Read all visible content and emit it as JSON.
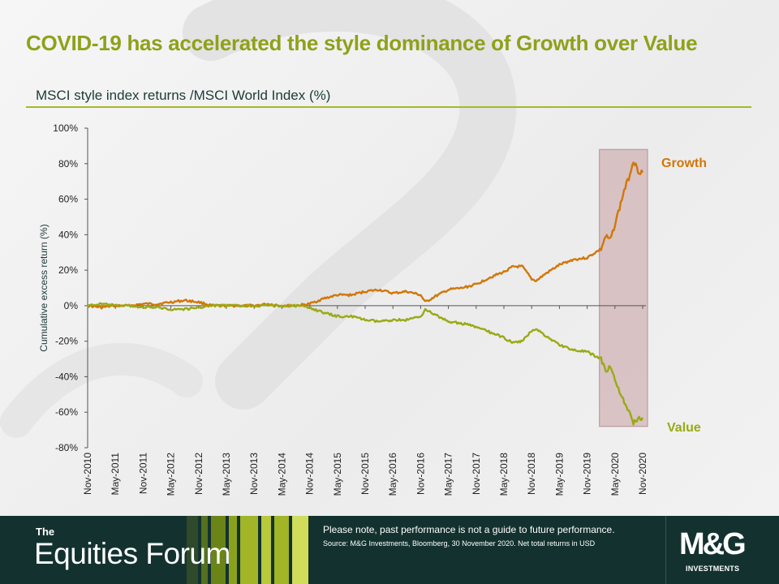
{
  "slide": {
    "title": "COVID-19 has accelerated the style dominance of Growth over Value",
    "subtitle": "MSCI style index returns /MSCI World Index (%)"
  },
  "footer": {
    "brand_the": "The",
    "brand_name": "Equities Forum",
    "disclaimer": "Please note, past performance  is not a guide to future performance.",
    "source": "Source: M&G Investments, Bloomberg, 30 November 2020. Net total returns in USD",
    "logo_text": "M&G",
    "logo_sub": "INVESTMENTS"
  },
  "colors": {
    "title": "#8fa11a",
    "growth": "#d17709",
    "value": "#99aa14",
    "highlight": "#c9a5a8",
    "footer_bg": "#13322f"
  },
  "chart_data": {
    "type": "line",
    "ylabel": "Cumulative excess return (%)",
    "ylim": [
      -80,
      100
    ],
    "y_ticks": [
      "100%",
      "80%",
      "60%",
      "40%",
      "20%",
      "0%",
      "-20%",
      "-40%",
      "-60%",
      "-80%"
    ],
    "y_tick_values": [
      100,
      80,
      60,
      40,
      20,
      0,
      -20,
      -40,
      -60,
      -80
    ],
    "x_ticks": [
      "Nov-2010",
      "May-2011",
      "Nov-2011",
      "May-2012",
      "Nov-2012",
      "May-2013",
      "Nov-2013",
      "May-2014",
      "Nov-2014",
      "May-2015",
      "Nov-2015",
      "May-2016",
      "Nov-2016",
      "May-2017",
      "Nov-2017",
      "May-2018",
      "Nov-2018",
      "May-2019",
      "Nov-2019",
      "May-2020",
      "Nov-2020"
    ],
    "highlight_period": {
      "from": "Feb-2020",
      "to": "Nov-2020",
      "y_range": [
        -68,
        88
      ]
    },
    "series": [
      {
        "name": "Growth",
        "color": "#d17709",
        "points": [
          [
            "Nov-2010",
            0
          ],
          [
            "Feb-2011",
            -1
          ],
          [
            "May-2011",
            0
          ],
          [
            "Aug-2011",
            0
          ],
          [
            "Nov-2011",
            1
          ],
          [
            "Feb-2012",
            1
          ],
          [
            "May-2012",
            2
          ],
          [
            "Aug-2012",
            3
          ],
          [
            "Nov-2012",
            2
          ],
          [
            "Feb-2013",
            0
          ],
          [
            "May-2013",
            0
          ],
          [
            "Aug-2013",
            0
          ],
          [
            "Nov-2013",
            0
          ],
          [
            "Feb-2014",
            1
          ],
          [
            "May-2014",
            0
          ],
          [
            "Aug-2014",
            0
          ],
          [
            "Nov-2014",
            1
          ],
          [
            "Feb-2015",
            4
          ],
          [
            "May-2015",
            6
          ],
          [
            "Aug-2015",
            6
          ],
          [
            "Nov-2015",
            8
          ],
          [
            "Feb-2016",
            9
          ],
          [
            "May-2016",
            7
          ],
          [
            "Aug-2016",
            8
          ],
          [
            "Nov-2016",
            6
          ],
          [
            "Dec-2016",
            2
          ],
          [
            "Feb-2017",
            5
          ],
          [
            "May-2017",
            9
          ],
          [
            "Aug-2017",
            10
          ],
          [
            "Nov-2017",
            12
          ],
          [
            "Feb-2018",
            16
          ],
          [
            "May-2018",
            19
          ],
          [
            "Jul-2018",
            22
          ],
          [
            "Sep-2018",
            22
          ],
          [
            "Nov-2018",
            15
          ],
          [
            "Dec-2018",
            14
          ],
          [
            "Feb-2019",
            18
          ],
          [
            "May-2019",
            23
          ],
          [
            "Aug-2019",
            26
          ],
          [
            "Nov-2019",
            27
          ],
          [
            "Feb-2020",
            32
          ],
          [
            "Mar-2020",
            39
          ],
          [
            "Apr-2020",
            37
          ],
          [
            "May-2020",
            46
          ],
          [
            "Jun-2020",
            55
          ],
          [
            "Jul-2020",
            65
          ],
          [
            "Aug-2020",
            72
          ],
          [
            "Sep-2020",
            82
          ],
          [
            "Oct-2020",
            76
          ],
          [
            "Nov-2020",
            75
          ]
        ]
      },
      {
        "name": "Value",
        "color": "#99aa14",
        "points": [
          [
            "Nov-2010",
            0
          ],
          [
            "Feb-2011",
            1
          ],
          [
            "May-2011",
            0
          ],
          [
            "Aug-2011",
            0
          ],
          [
            "Nov-2011",
            -1
          ],
          [
            "Feb-2012",
            -1
          ],
          [
            "May-2012",
            -2
          ],
          [
            "Aug-2012",
            -2
          ],
          [
            "Nov-2012",
            -1
          ],
          [
            "Feb-2013",
            0
          ],
          [
            "May-2013",
            0
          ],
          [
            "Aug-2013",
            0
          ],
          [
            "Nov-2013",
            0
          ],
          [
            "Feb-2014",
            0
          ],
          [
            "May-2014",
            0
          ],
          [
            "Aug-2014",
            0
          ],
          [
            "Nov-2014",
            -1
          ],
          [
            "Feb-2015",
            -4
          ],
          [
            "May-2015",
            -6
          ],
          [
            "Aug-2015",
            -6
          ],
          [
            "Nov-2015",
            -8
          ],
          [
            "Feb-2016",
            -9
          ],
          [
            "May-2016",
            -8
          ],
          [
            "Aug-2016",
            -8
          ],
          [
            "Nov-2016",
            -6
          ],
          [
            "Dec-2016",
            -2
          ],
          [
            "Feb-2017",
            -5
          ],
          [
            "May-2017",
            -9
          ],
          [
            "Aug-2017",
            -10
          ],
          [
            "Nov-2017",
            -12
          ],
          [
            "Feb-2018",
            -15
          ],
          [
            "May-2018",
            -18
          ],
          [
            "Jul-2018",
            -21
          ],
          [
            "Sep-2018",
            -20
          ],
          [
            "Nov-2018",
            -14
          ],
          [
            "Dec-2018",
            -13
          ],
          [
            "Feb-2019",
            -17
          ],
          [
            "May-2019",
            -22
          ],
          [
            "Aug-2019",
            -25
          ],
          [
            "Nov-2019",
            -26
          ],
          [
            "Feb-2020",
            -30
          ],
          [
            "Mar-2020",
            -37
          ],
          [
            "Apr-2020",
            -34
          ],
          [
            "May-2020",
            -42
          ],
          [
            "Jun-2020",
            -48
          ],
          [
            "Jul-2020",
            -55
          ],
          [
            "Aug-2020",
            -60
          ],
          [
            "Sep-2020",
            -66
          ],
          [
            "Oct-2020",
            -63
          ],
          [
            "Nov-2020",
            -63
          ]
        ]
      }
    ]
  }
}
